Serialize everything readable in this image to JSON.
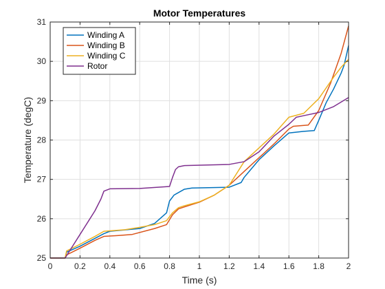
{
  "chart_data": {
    "type": "line",
    "title": "Motor Temperatures",
    "xlabel": "Time (s)",
    "ylabel": "Temperature (degC)",
    "xlim": [
      0,
      2
    ],
    "ylim": [
      25,
      31
    ],
    "xticks": [
      0,
      0.2,
      0.4,
      0.6,
      0.8,
      1,
      1.2,
      1.4,
      1.6,
      1.8,
      2
    ],
    "yticks": [
      25,
      26,
      27,
      28,
      29,
      30,
      31
    ],
    "grid": true,
    "legend_position": "top-left",
    "series": [
      {
        "name": "Winding A",
        "color": "#0072BD",
        "points": [
          [
            0,
            25
          ],
          [
            0.1,
            25
          ],
          [
            0.11,
            25.15
          ],
          [
            0.2,
            25.3
          ],
          [
            0.3,
            25.5
          ],
          [
            0.36,
            25.62
          ],
          [
            0.4,
            25.68
          ],
          [
            0.6,
            25.75
          ],
          [
            0.7,
            25.88
          ],
          [
            0.78,
            26.15
          ],
          [
            0.8,
            26.45
          ],
          [
            0.83,
            26.6
          ],
          [
            0.9,
            26.75
          ],
          [
            0.95,
            26.78
          ],
          [
            1.2,
            26.8
          ],
          [
            1.28,
            26.92
          ],
          [
            1.3,
            27.05
          ],
          [
            1.4,
            27.5
          ],
          [
            1.5,
            27.85
          ],
          [
            1.6,
            28.18
          ],
          [
            1.7,
            28.22
          ],
          [
            1.77,
            28.24
          ],
          [
            1.8,
            28.5
          ],
          [
            1.85,
            28.95
          ],
          [
            1.9,
            29.3
          ],
          [
            1.95,
            29.7
          ],
          [
            1.97,
            29.9
          ],
          [
            2,
            30.4
          ]
        ]
      },
      {
        "name": "Winding B",
        "color": "#D95319",
        "points": [
          [
            0,
            25
          ],
          [
            0.1,
            25
          ],
          [
            0.11,
            25.08
          ],
          [
            0.2,
            25.25
          ],
          [
            0.3,
            25.45
          ],
          [
            0.36,
            25.55
          ],
          [
            0.45,
            25.57
          ],
          [
            0.55,
            25.6
          ],
          [
            0.7,
            25.75
          ],
          [
            0.78,
            25.85
          ],
          [
            0.82,
            26.1
          ],
          [
            0.86,
            26.25
          ],
          [
            0.9,
            26.3
          ],
          [
            1,
            26.42
          ],
          [
            1.1,
            26.6
          ],
          [
            1.2,
            26.85
          ],
          [
            1.3,
            27.2
          ],
          [
            1.4,
            27.55
          ],
          [
            1.5,
            27.9
          ],
          [
            1.6,
            28.28
          ],
          [
            1.63,
            28.35
          ],
          [
            1.73,
            28.38
          ],
          [
            1.8,
            28.75
          ],
          [
            1.88,
            29.45
          ],
          [
            1.95,
            30.2
          ],
          [
            2,
            30.9
          ]
        ]
      },
      {
        "name": "Winding C",
        "color": "#EDB120",
        "points": [
          [
            0,
            25
          ],
          [
            0.1,
            25
          ],
          [
            0.11,
            25.18
          ],
          [
            0.2,
            25.35
          ],
          [
            0.3,
            25.55
          ],
          [
            0.36,
            25.68
          ],
          [
            0.5,
            25.72
          ],
          [
            0.6,
            25.78
          ],
          [
            0.7,
            25.85
          ],
          [
            0.78,
            25.95
          ],
          [
            0.82,
            26.15
          ],
          [
            0.86,
            26.28
          ],
          [
            0.9,
            26.33
          ],
          [
            1,
            26.43
          ],
          [
            1.1,
            26.6
          ],
          [
            1.2,
            26.85
          ],
          [
            1.3,
            27.45
          ],
          [
            1.4,
            27.8
          ],
          [
            1.5,
            28.15
          ],
          [
            1.6,
            28.58
          ],
          [
            1.7,
            28.68
          ],
          [
            1.8,
            29.05
          ],
          [
            1.9,
            29.6
          ],
          [
            1.95,
            29.85
          ],
          [
            2,
            30.05
          ]
        ]
      },
      {
        "name": "Rotor",
        "color": "#7E2F8E",
        "points": [
          [
            0,
            25
          ],
          [
            0.1,
            25
          ],
          [
            0.2,
            25.6
          ],
          [
            0.3,
            26.2
          ],
          [
            0.34,
            26.5
          ],
          [
            0.36,
            26.7
          ],
          [
            0.4,
            26.76
          ],
          [
            0.6,
            26.77
          ],
          [
            0.8,
            26.82
          ],
          [
            0.82,
            27.05
          ],
          [
            0.84,
            27.25
          ],
          [
            0.86,
            27.32
          ],
          [
            0.9,
            27.35
          ],
          [
            1.2,
            27.38
          ],
          [
            1.3,
            27.45
          ],
          [
            1.4,
            27.7
          ],
          [
            1.5,
            28.1
          ],
          [
            1.6,
            28.4
          ],
          [
            1.65,
            28.58
          ],
          [
            1.7,
            28.62
          ],
          [
            1.8,
            28.7
          ],
          [
            1.9,
            28.85
          ],
          [
            2,
            29.08
          ]
        ]
      }
    ]
  }
}
